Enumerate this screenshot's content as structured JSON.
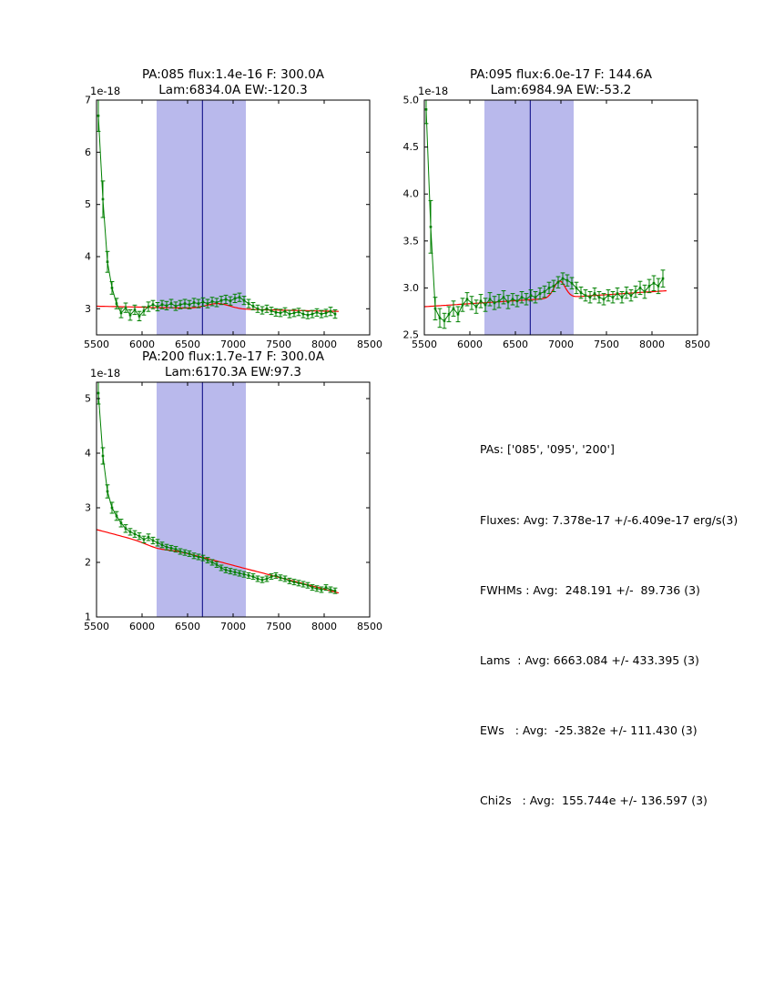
{
  "page": {
    "background": "#ffffff"
  },
  "summary": {
    "lines": [
      "PAs: ['085', '095', '200']",
      "Fluxes: Avg: 7.378e-17 +/-6.409e-17 erg/s(3)",
      "FWHMs : Avg:  248.191 +/-  89.736 (3)",
      "Lams  : Avg: 6663.084 +/- 433.395 (3)",
      "EWs   : Avg:  -25.382e +/- 111.430 (3)",
      "Chi2s   : Avg:  155.744e +/- 136.597 (3)"
    ]
  },
  "chart_data": [
    {
      "type": "line",
      "id": "pa085",
      "title_line1": "PA:085 flux:1.4e-16 F: 300.0A",
      "title_line2": "Lam:6834.0A EW:-120.3",
      "offset_text": "1e-18",
      "xlabel": "",
      "ylabel": "",
      "grid": false,
      "xlim": [
        5500,
        8500
      ],
      "ylim": [
        2.5,
        7.0
      ],
      "xticks": [
        5500,
        6000,
        6500,
        7000,
        7500,
        8000,
        8500
      ],
      "yticks": [
        3,
        4,
        5,
        6,
        7
      ],
      "ytick_labels": [
        "3",
        "4",
        "5",
        "6",
        "7"
      ],
      "band": [
        6160,
        7140
      ],
      "vline": 6663,
      "series": {
        "x_start": 5520,
        "x_step": 50,
        "y": [
          6.7,
          5.1,
          3.9,
          3.4,
          3.1,
          2.92,
          3.02,
          2.88,
          2.98,
          2.86,
          2.96,
          3.04,
          3.08,
          3.04,
          3.08,
          3.06,
          3.1,
          3.05,
          3.08,
          3.1,
          3.08,
          3.12,
          3.1,
          3.13,
          3.1,
          3.14,
          3.12,
          3.16,
          3.18,
          3.15,
          3.2,
          3.22,
          3.16,
          3.1,
          3.05,
          3.0,
          2.97,
          3.0,
          2.96,
          2.93,
          2.92,
          2.95,
          2.9,
          2.92,
          2.94,
          2.9,
          2.88,
          2.9,
          2.93,
          2.9,
          2.92,
          2.95,
          2.9
        ],
        "yerr": [
          0.3,
          0.35,
          0.2,
          0.12,
          0.1,
          0.09,
          0.09,
          0.1,
          0.09,
          0.09,
          0.08,
          0.09,
          0.08,
          0.08,
          0.08,
          0.08,
          0.08,
          0.08,
          0.08,
          0.08,
          0.08,
          0.08,
          0.08,
          0.08,
          0.08,
          0.08,
          0.08,
          0.08,
          0.08,
          0.08,
          0.08,
          0.08,
          0.08,
          0.08,
          0.07,
          0.07,
          0.07,
          0.07,
          0.07,
          0.07,
          0.07,
          0.07,
          0.07,
          0.07,
          0.07,
          0.07,
          0.07,
          0.07,
          0.07,
          0.07,
          0.07,
          0.08,
          0.08
        ]
      },
      "fit": {
        "x_range": [
          5500,
          8160
        ],
        "c0": 3.05,
        "c1": 2.95,
        "amp": 0.1,
        "center": 6834.0,
        "sigma": 127
      },
      "colors": {
        "data": "#008000",
        "fit": "#ff0000",
        "band": "#b9b9ec",
        "vline": "#000080"
      }
    },
    {
      "type": "line",
      "id": "pa095",
      "title_line1": "PA:095 flux:6.0e-17 F: 144.6A",
      "title_line2": "Lam:6984.9A EW:-53.2",
      "offset_text": "1e-18",
      "xlabel": "",
      "ylabel": "",
      "grid": false,
      "xlim": [
        5500,
        8500
      ],
      "ylim": [
        2.5,
        5.0
      ],
      "xticks": [
        5500,
        6000,
        6500,
        7000,
        7500,
        8000,
        8500
      ],
      "yticks": [
        2.5,
        3.0,
        3.5,
        4.0,
        4.5,
        5.0
      ],
      "ytick_labels": [
        "2.5",
        "3.0",
        "3.5",
        "4.0",
        "4.5",
        "5.0"
      ],
      "band": [
        6160,
        7140
      ],
      "vline": 6663,
      "series": {
        "x_start": 5520,
        "x_step": 50,
        "y": [
          4.9,
          3.65,
          2.78,
          2.68,
          2.65,
          2.72,
          2.78,
          2.72,
          2.82,
          2.88,
          2.84,
          2.8,
          2.86,
          2.82,
          2.88,
          2.84,
          2.86,
          2.9,
          2.85,
          2.88,
          2.86,
          2.9,
          2.88,
          2.92,
          2.9,
          2.94,
          2.96,
          3.0,
          3.02,
          3.06,
          3.1,
          3.08,
          3.05,
          3.0,
          2.95,
          2.92,
          2.9,
          2.94,
          2.9,
          2.88,
          2.92,
          2.9,
          2.94,
          2.9,
          2.95,
          2.92,
          2.96,
          3.0,
          2.96,
          3.02,
          3.05,
          3.02,
          3.1
        ],
        "yerr": [
          0.15,
          0.28,
          0.12,
          0.1,
          0.08,
          0.08,
          0.08,
          0.08,
          0.07,
          0.07,
          0.07,
          0.07,
          0.07,
          0.07,
          0.07,
          0.07,
          0.07,
          0.07,
          0.07,
          0.06,
          0.06,
          0.06,
          0.06,
          0.06,
          0.06,
          0.06,
          0.06,
          0.06,
          0.06,
          0.06,
          0.06,
          0.06,
          0.06,
          0.06,
          0.06,
          0.06,
          0.06,
          0.06,
          0.06,
          0.06,
          0.06,
          0.06,
          0.06,
          0.06,
          0.06,
          0.06,
          0.06,
          0.07,
          0.07,
          0.07,
          0.08,
          0.08,
          0.09
        ]
      },
      "fit": {
        "x_range": [
          5500,
          8160
        ],
        "c0": 2.8,
        "c1": 2.97,
        "amp": 0.18,
        "center": 6984.9,
        "sigma": 61.4
      },
      "colors": {
        "data": "#008000",
        "fit": "#ff0000",
        "band": "#b9b9ec",
        "vline": "#000080"
      }
    },
    {
      "type": "line",
      "id": "pa200",
      "title_line1": "PA:200 flux:1.7e-17 F: 300.0A",
      "title_line2": "Lam:6170.3A EW:97.3",
      "offset_text": "1e-18",
      "xlabel": "",
      "ylabel": "",
      "grid": false,
      "xlim": [
        5500,
        8500
      ],
      "ylim": [
        1.0,
        5.3
      ],
      "xticks": [
        5500,
        6000,
        6500,
        7000,
        7500,
        8000,
        8500
      ],
      "yticks": [
        1,
        2,
        3,
        4,
        5
      ],
      "ytick_labels": [
        "1",
        "2",
        "3",
        "4",
        "5"
      ],
      "band": [
        6160,
        7140
      ],
      "vline": 6663,
      "series": {
        "x_start": 5520,
        "x_step": 50,
        "y": [
          5.1,
          3.95,
          3.3,
          3.0,
          2.85,
          2.72,
          2.62,
          2.56,
          2.52,
          2.48,
          2.42,
          2.46,
          2.4,
          2.36,
          2.32,
          2.28,
          2.26,
          2.24,
          2.2,
          2.18,
          2.16,
          2.12,
          2.1,
          2.08,
          2.04,
          2.0,
          1.96,
          1.9,
          1.86,
          1.84,
          1.82,
          1.8,
          1.78,
          1.76,
          1.74,
          1.7,
          1.68,
          1.7,
          1.74,
          1.76,
          1.72,
          1.7,
          1.66,
          1.64,
          1.62,
          1.6,
          1.58,
          1.54,
          1.52,
          1.5,
          1.54,
          1.5,
          1.48
        ],
        "yerr": [
          0.2,
          0.15,
          0.12,
          0.1,
          0.08,
          0.07,
          0.07,
          0.06,
          0.06,
          0.06,
          0.06,
          0.06,
          0.06,
          0.06,
          0.05,
          0.05,
          0.05,
          0.05,
          0.05,
          0.05,
          0.05,
          0.05,
          0.05,
          0.05,
          0.05,
          0.05,
          0.05,
          0.05,
          0.05,
          0.05,
          0.05,
          0.05,
          0.05,
          0.05,
          0.05,
          0.05,
          0.05,
          0.05,
          0.05,
          0.05,
          0.05,
          0.05,
          0.05,
          0.05,
          0.05,
          0.05,
          0.05,
          0.05,
          0.05,
          0.05,
          0.05,
          0.05,
          0.05
        ]
      },
      "fit": {
        "x_range": [
          5500,
          8160
        ],
        "c0": 2.6,
        "c1": 1.44,
        "amp": -0.05,
        "center": 6170.3,
        "sigma": 127
      },
      "colors": {
        "data": "#008000",
        "fit": "#ff0000",
        "band": "#b9b9ec",
        "vline": "#000080"
      }
    }
  ]
}
